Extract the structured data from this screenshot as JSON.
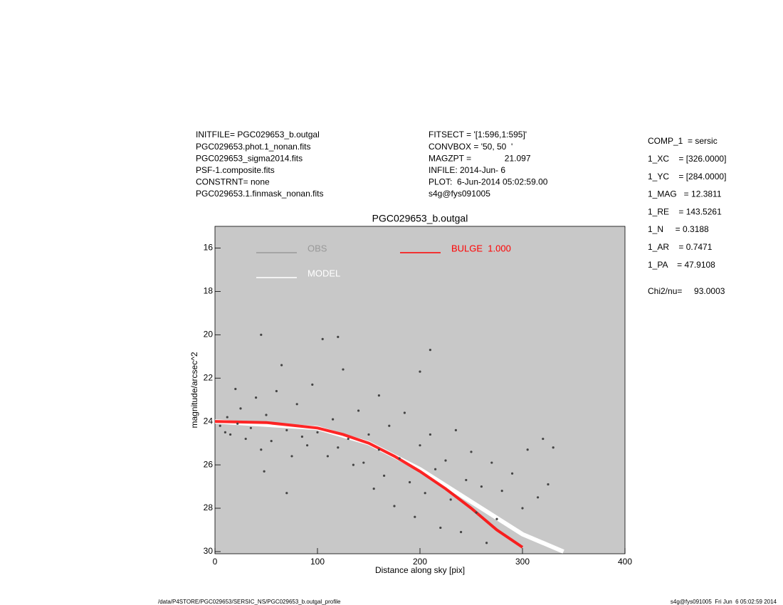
{
  "header": {
    "left": [
      "INITFILE= PGC029653_b.outgal",
      "PGC029653.phot.1_nonan.fits",
      "PGC029653_sigma2014.fits",
      "PSF-1.composite.fits",
      "CONSTRNT= none",
      "PGC029653.1.finmask_nonan.fits"
    ],
    "middle": [
      "FITSECT = '[1:596,1:595]'",
      "CONVBOX = '50, 50  '",
      "MAGZPT =              21.097",
      "INFILE: 2014-Jun- 6",
      "PLOT:  6-Jun-2014 05:02:59.00",
      "s4g@fys091005"
    ],
    "right": [
      "COMP_1  = sersic",
      "1_XC    = [326.0000]",
      "1_YC    = [284.0000]",
      "1_MAG   = 12.3811",
      "1_RE    = 143.5261",
      "1_N     = 0.3188",
      "1_AR    = 0.7471",
      "1_PA    = 47.9108",
      "Chi2/nu=     93.0003"
    ]
  },
  "footer": {
    "left": "/data/P4STORE/PGC029653/SERSIC_NS/PGC029653_b.outgal_profile",
    "right": "s4g@fys091005  Fri Jun  6 05:02:59 2014"
  },
  "chart_data": {
    "type": "scatter",
    "title": "PGC029653_b.outgal",
    "xlabel": "Distance along sky [pix]",
    "ylabel": "magnitude/arcsec^2",
    "xlim": [
      0,
      400
    ],
    "xticks": [
      0,
      100,
      200,
      300,
      400
    ],
    "ylim": [
      30.1,
      15
    ],
    "yticks": [
      16,
      18,
      20,
      22,
      24,
      26,
      28,
      30
    ],
    "background": "#c8c8c8",
    "series": [
      {
        "name": "OBS",
        "color": "#444444",
        "mode": "points",
        "x": [
          5,
          10,
          12,
          15,
          20,
          22,
          25,
          30,
          35,
          40,
          45,
          45,
          48,
          50,
          55,
          60,
          65,
          70,
          70,
          75,
          80,
          85,
          90,
          95,
          100,
          105,
          110,
          115,
          120,
          120,
          125,
          130,
          135,
          140,
          145,
          150,
          155,
          160,
          160,
          165,
          170,
          175,
          180,
          185,
          190,
          195,
          200,
          200,
          205,
          210,
          210,
          215,
          220,
          225,
          230,
          235,
          240,
          245,
          250,
          255,
          260,
          265,
          270,
          275,
          280,
          290,
          300,
          305,
          315,
          320,
          325,
          330
        ],
        "values": [
          24.2,
          24.5,
          23.8,
          24.6,
          22.5,
          24.1,
          23.4,
          24.8,
          24.3,
          22.9,
          20.0,
          25.3,
          26.3,
          23.7,
          24.9,
          22.6,
          21.4,
          24.4,
          27.3,
          25.6,
          23.2,
          24.7,
          25.1,
          22.3,
          24.5,
          20.2,
          25.6,
          23.9,
          20.1,
          25.2,
          21.6,
          24.8,
          26.0,
          23.5,
          25.9,
          24.6,
          27.1,
          22.8,
          25.3,
          26.5,
          24.2,
          27.9,
          25.7,
          23.6,
          26.8,
          28.4,
          25.1,
          21.7,
          27.3,
          20.7,
          24.6,
          26.2,
          28.9,
          25.8,
          27.6,
          24.4,
          29.1,
          26.7,
          25.4,
          28.2,
          27.0,
          29.6,
          25.9,
          28.5,
          27.2,
          26.4,
          28.0,
          25.3,
          27.5,
          24.8,
          26.9,
          25.2
        ]
      },
      {
        "name": "MODEL",
        "color": "#ffffff",
        "mode": "line",
        "x": [
          0,
          100,
          150,
          200,
          250,
          300,
          340
        ],
        "values": [
          24.0,
          24.3,
          25.0,
          26.2,
          27.7,
          29.2,
          30.0
        ]
      },
      {
        "name": "BULGE  1.000",
        "color": "#ff0000",
        "mode": "line",
        "x": [
          0,
          50,
          100,
          125,
          150,
          175,
          200,
          225,
          250,
          275,
          300
        ],
        "values": [
          24.0,
          24.05,
          24.3,
          24.6,
          25.0,
          25.6,
          26.3,
          27.1,
          28.0,
          29.0,
          29.8
        ]
      }
    ]
  }
}
